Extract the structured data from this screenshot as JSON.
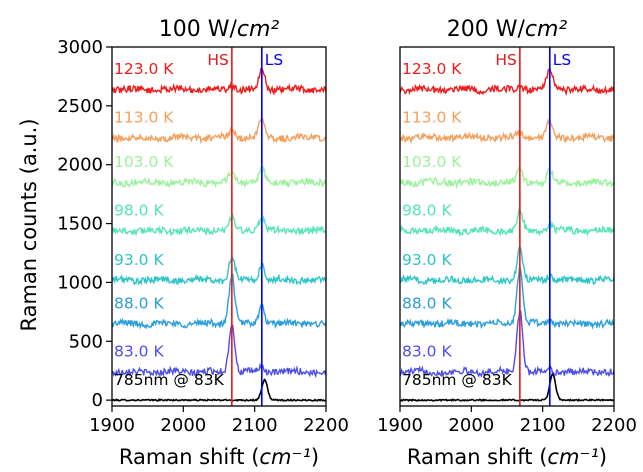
{
  "chart_data": [
    {
      "type": "line",
      "title": "100 W/cm²",
      "xlabel": "Raman shift (cm⁻¹)",
      "ylabel": "Raman counts (a.u.)",
      "xlim": [
        1900,
        2200
      ],
      "ylim": [
        -50,
        3000
      ],
      "xticks": [
        "1900",
        "2000",
        "2100",
        "2200"
      ],
      "yticks": [
        "0",
        "500",
        "1000",
        "1500",
        "2000",
        "2500",
        "3000"
      ],
      "vlines": [
        {
          "x": 2068,
          "label": "HS",
          "color": "#e41a1c"
        },
        {
          "x": 2110,
          "label": "LS",
          "color": "#0000ff"
        }
      ],
      "series": [
        {
          "name": "785nm @ 83K",
          "color": "#000000",
          "offset": 0,
          "peaks": [
            {
              "x": 2114,
              "h": 170,
              "w": 4
            }
          ]
        },
        {
          "name": "83.0 K",
          "color": "#4f4fe6",
          "offset": 240,
          "peaks": [
            {
              "x": 2068,
              "h": 420,
              "w": 4
            },
            {
              "x": 2110,
              "h": 40,
              "w": 4
            }
          ]
        },
        {
          "name": "88.0 K",
          "color": "#2a9fdc",
          "offset": 650,
          "peaks": [
            {
              "x": 2068,
              "h": 420,
              "w": 4
            },
            {
              "x": 2110,
              "h": 150,
              "w": 4
            }
          ]
        },
        {
          "name": "93.0 K",
          "color": "#2ec5c9",
          "offset": 1020,
          "peaks": [
            {
              "x": 2068,
              "h": 200,
              "w": 4
            },
            {
              "x": 2110,
              "h": 130,
              "w": 4
            }
          ]
        },
        {
          "name": "98.0 K",
          "color": "#56e6b4",
          "offset": 1440,
          "peaks": [
            {
              "x": 2068,
              "h": 110,
              "w": 4
            },
            {
              "x": 2110,
              "h": 110,
              "w": 4
            }
          ]
        },
        {
          "name": "103.0 K",
          "color": "#9af29a",
          "offset": 1850,
          "peaks": [
            {
              "x": 2068,
              "h": 90,
              "w": 4
            },
            {
              "x": 2110,
              "h": 110,
              "w": 4
            }
          ]
        },
        {
          "name": "113.0 K",
          "color": "#f4a05c",
          "offset": 2230,
          "peaks": [
            {
              "x": 2068,
              "h": 60,
              "w": 4
            },
            {
              "x": 2110,
              "h": 170,
              "w": 4
            }
          ]
        },
        {
          "name": "123.0 K",
          "color": "#ee1d1d",
          "offset": 2640,
          "peaks": [
            {
              "x": 2068,
              "h": 40,
              "w": 4
            },
            {
              "x": 2110,
              "h": 180,
              "w": 4
            }
          ]
        }
      ]
    },
    {
      "type": "line",
      "title": "200 W/cm²",
      "xlabel": "Raman shift (cm⁻¹)",
      "ylabel": "",
      "xlim": [
        1900,
        2200
      ],
      "ylim": [
        -50,
        3000
      ],
      "xticks": [
        "1900",
        "2000",
        "2100",
        "2200"
      ],
      "yticks": [],
      "vlines": [
        {
          "x": 2068,
          "label": "HS",
          "color": "#e41a1c"
        },
        {
          "x": 2110,
          "label": "LS",
          "color": "#0000ff"
        }
      ],
      "series": [
        {
          "name": "785nm @ 83K",
          "color": "#000000",
          "offset": 0,
          "peaks": [
            {
              "x": 2114,
              "h": 220,
              "w": 4
            }
          ]
        },
        {
          "name": "83.0 K",
          "color": "#4f4fe6",
          "offset": 240,
          "peaks": [
            {
              "x": 2068,
              "h": 520,
              "w": 4
            },
            {
              "x": 2110,
              "h": 30,
              "w": 4
            }
          ]
        },
        {
          "name": "88.0 K",
          "color": "#2a9fdc",
          "offset": 650,
          "peaks": [
            {
              "x": 2068,
              "h": 480,
              "w": 4
            },
            {
              "x": 2110,
              "h": 30,
              "w": 4
            }
          ]
        },
        {
          "name": "93.0 K",
          "color": "#2ec5c9",
          "offset": 1020,
          "peaks": [
            {
              "x": 2068,
              "h": 260,
              "w": 4
            },
            {
              "x": 2110,
              "h": 40,
              "w": 4
            }
          ]
        },
        {
          "name": "98.0 K",
          "color": "#56e6b4",
          "offset": 1440,
          "peaks": [
            {
              "x": 2068,
              "h": 160,
              "w": 4
            },
            {
              "x": 2110,
              "h": 60,
              "w": 4
            }
          ]
        },
        {
          "name": "103.0 K",
          "color": "#9af29a",
          "offset": 1850,
          "peaks": [
            {
              "x": 2068,
              "h": 100,
              "w": 4
            },
            {
              "x": 2110,
              "h": 100,
              "w": 4
            }
          ]
        },
        {
          "name": "113.0 K",
          "color": "#f4a05c",
          "offset": 2230,
          "peaks": [
            {
              "x": 2068,
              "h": 50,
              "w": 4
            },
            {
              "x": 2110,
              "h": 140,
              "w": 4
            }
          ]
        },
        {
          "name": "123.0 K",
          "color": "#ee1d1d",
          "offset": 2640,
          "peaks": [
            {
              "x": 2068,
              "h": 30,
              "w": 4
            },
            {
              "x": 2110,
              "h": 170,
              "w": 4
            }
          ]
        }
      ]
    }
  ]
}
